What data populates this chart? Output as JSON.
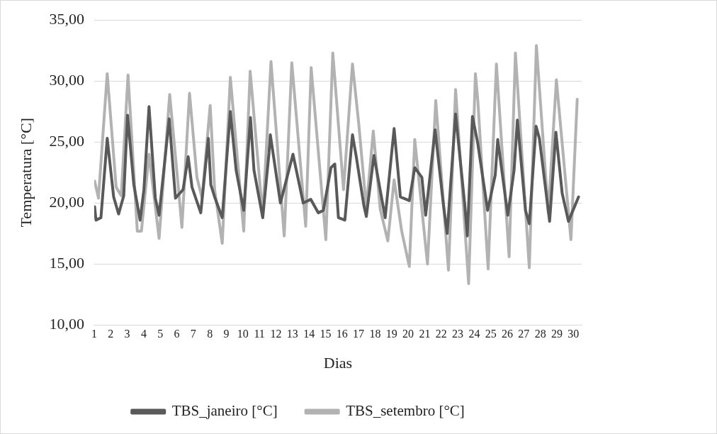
{
  "chart_data": {
    "type": "line",
    "xlabel": "Dias",
    "ylabel": "Temperatura [°C]",
    "xlim": [
      1,
      30.5
    ],
    "xticks": [
      1,
      2,
      3,
      4,
      5,
      6,
      7,
      8,
      9,
      10,
      11,
      12,
      13,
      14,
      15,
      16,
      17,
      18,
      19,
      20,
      21,
      22,
      23,
      24,
      25,
      26,
      27,
      28,
      29,
      30
    ],
    "ylim": [
      10,
      35
    ],
    "yticks": [
      {
        "value": 10,
        "label": "10,00"
      },
      {
        "value": 15,
        "label": "15,00"
      },
      {
        "value": 20,
        "label": "20,00"
      },
      {
        "value": 25,
        "label": "25,00"
      },
      {
        "value": 30,
        "label": "30,00"
      },
      {
        "value": 35,
        "label": "35,00"
      }
    ],
    "grid": "y",
    "legend": "bottom",
    "marker": "none",
    "line_style": "solid",
    "series": [
      {
        "name": "TBS_janeiro [°C]",
        "color": "#595959",
        "x": [
          1.03,
          1.11,
          1.41,
          1.79,
          2.18,
          2.48,
          2.79,
          3.02,
          3.4,
          3.78,
          4.01,
          4.32,
          4.7,
          4.93,
          5.54,
          5.92,
          6.38,
          6.69,
          6.92,
          7.45,
          7.91,
          8.06,
          8.29,
          8.75,
          9.24,
          9.59,
          10.05,
          10.46,
          10.67,
          11.2,
          11.58,
          11.66,
          12.27,
          13.03,
          13.65,
          14.11,
          14.56,
          14.87,
          15.33,
          15.56,
          15.78,
          16.17,
          16.63,
          16.86,
          17.32,
          17.47,
          17.93,
          18.61,
          19.15,
          19.53,
          20.07,
          20.4,
          20.83,
          21.06,
          21.63,
          22.13,
          22.36,
          22.87,
          23.43,
          23.58,
          23.89,
          24.2,
          24.81,
          25.27,
          25.42,
          26.03,
          26.41,
          26.61,
          27.1,
          27.33,
          27.74,
          27.94,
          28.56,
          28.94,
          29.32,
          29.7,
          30.31
        ],
        "values": [
          19.7,
          18.6,
          18.8,
          25.3,
          20.5,
          19.1,
          20.6,
          27.2,
          21.5,
          18.6,
          21.1,
          27.9,
          20.4,
          19.0,
          26.9,
          20.4,
          21.1,
          23.8,
          21.3,
          19.2,
          25.3,
          21.5,
          20.5,
          18.8,
          27.5,
          22.7,
          19.4,
          27.0,
          22.7,
          18.8,
          24.1,
          25.6,
          20.0,
          24.0,
          20.0,
          20.3,
          19.2,
          19.4,
          22.9,
          23.2,
          18.8,
          18.6,
          25.6,
          23.8,
          19.8,
          18.9,
          23.9,
          18.8,
          26.1,
          20.5,
          20.2,
          22.9,
          22.1,
          19.0,
          26.0,
          19.9,
          17.5,
          27.3,
          19.8,
          17.3,
          27.1,
          25.0,
          19.4,
          22.3,
          25.2,
          19.0,
          22.7,
          26.8,
          19.4,
          18.3,
          26.3,
          25.3,
          18.5,
          25.8,
          20.8,
          18.5,
          20.5
        ]
      },
      {
        "name": "TBS_setembro [°C]",
        "color": "#b2b2b2",
        "x": [
          1.03,
          1.26,
          1.79,
          2.33,
          2.64,
          3.05,
          3.61,
          3.86,
          4.32,
          4.93,
          5.57,
          6.08,
          6.31,
          6.77,
          7.22,
          7.53,
          8.02,
          8.29,
          8.75,
          9.24,
          10.05,
          10.44,
          11.2,
          11.7,
          12.5,
          12.96,
          13.8,
          14.13,
          15.02,
          15.44,
          16.09,
          16.63,
          17.01,
          17.47,
          17.89,
          18.31,
          18.77,
          19.15,
          19.61,
          20.07,
          20.4,
          21.17,
          21.67,
          22.44,
          22.87,
          23.66,
          24.07,
          24.22,
          24.84,
          25.34,
          26.11,
          26.49,
          27.33,
          27.76,
          28.48,
          28.97,
          29.85,
          30.23
        ],
        "values": [
          21.8,
          20.4,
          30.6,
          21.3,
          20.6,
          30.5,
          17.7,
          17.7,
          24.0,
          17.1,
          28.9,
          21.5,
          18.0,
          29.0,
          22.1,
          20.4,
          28.0,
          21.1,
          16.7,
          30.3,
          17.7,
          30.8,
          18.9,
          31.6,
          17.3,
          31.5,
          18.1,
          31.1,
          17.0,
          32.3,
          21.1,
          31.4,
          26.5,
          19.6,
          25.9,
          19.5,
          16.9,
          21.9,
          17.7,
          14.8,
          25.2,
          15.0,
          28.4,
          14.5,
          29.3,
          13.4,
          30.6,
          28.3,
          14.6,
          31.4,
          15.6,
          32.3,
          14.7,
          32.9,
          19.2,
          30.1,
          17.0,
          28.5
        ]
      }
    ]
  }
}
